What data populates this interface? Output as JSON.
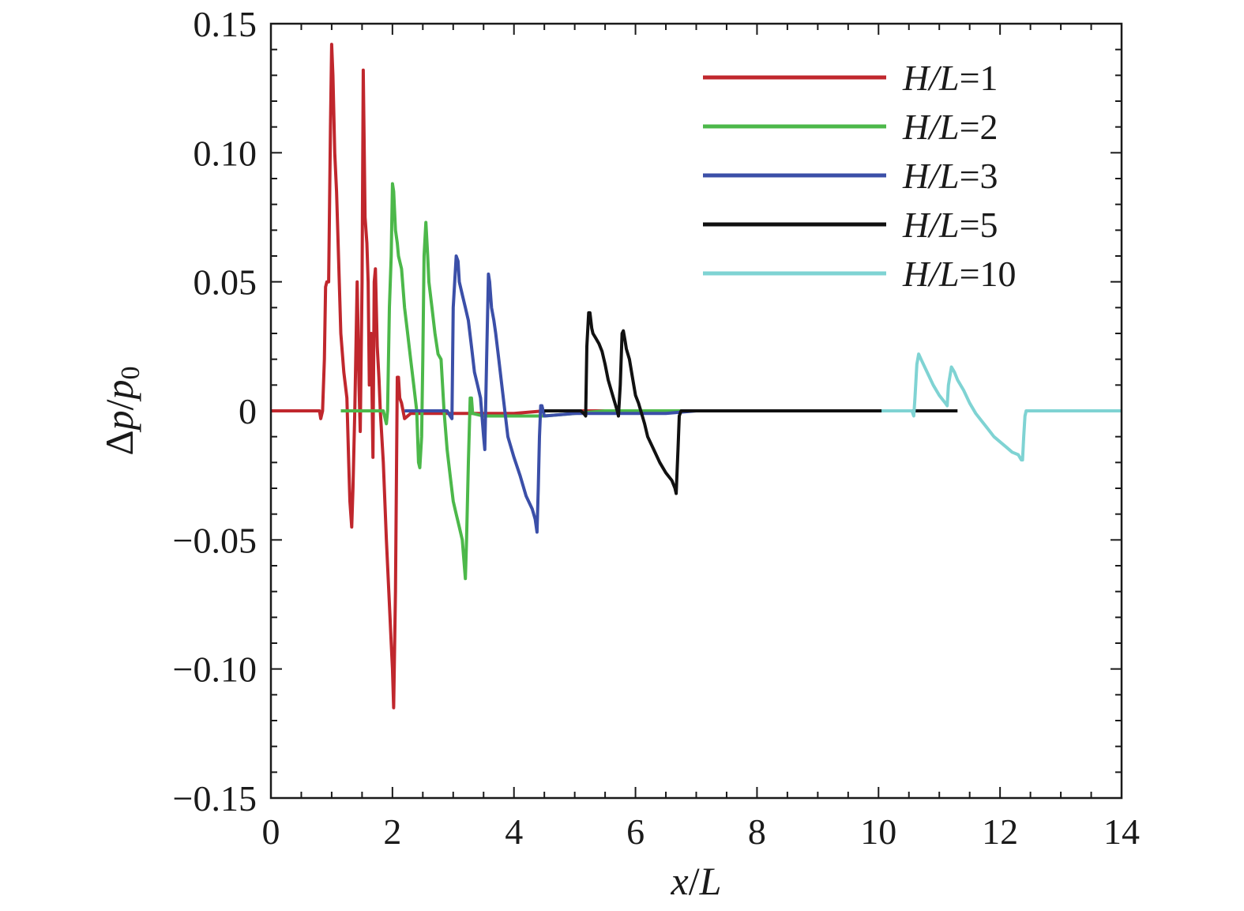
{
  "chart_data": {
    "type": "line",
    "title": "",
    "xlabel": {
      "var": "x",
      "sep": "/",
      "ref": "L"
    },
    "ylabel": {
      "delta": "Δ",
      "var": "p",
      "sep": "/",
      "ref": "p",
      "ref_sub": "0"
    },
    "xlim": [
      0,
      14
    ],
    "ylim": [
      -0.15,
      0.15
    ],
    "xticks": [
      0,
      2,
      4,
      6,
      8,
      10,
      12,
      14
    ],
    "xtick_labels": [
      "0",
      "2",
      "4",
      "6",
      "8",
      "10",
      "12",
      "14"
    ],
    "yticks": [
      0.15,
      0.1,
      0.05,
      0,
      -0.05,
      -0.1,
      -0.15
    ],
    "ytick_labels": [
      "0.15",
      "0.10",
      "0.05",
      "0",
      "−0.05",
      "−0.10",
      "−0.15"
    ],
    "grid": false,
    "legend_position": "top-right",
    "series": [
      {
        "name": "H/L=1",
        "legend": {
          "var": "H/L",
          "eq": "=1"
        },
        "color": "#c0272d",
        "points": [
          [
            0,
            0
          ],
          [
            0.8,
            0
          ],
          [
            0.82,
            -0.003
          ],
          [
            0.85,
            0
          ],
          [
            0.88,
            0.02
          ],
          [
            0.9,
            0.048
          ],
          [
            0.92,
            0.05
          ],
          [
            0.95,
            0.05
          ],
          [
            0.98,
            0.11
          ],
          [
            1.0,
            0.142
          ],
          [
            1.02,
            0.13
          ],
          [
            1.05,
            0.1
          ],
          [
            1.08,
            0.085
          ],
          [
            1.1,
            0.07
          ],
          [
            1.15,
            0.03
          ],
          [
            1.2,
            0.015
          ],
          [
            1.25,
            0.005
          ],
          [
            1.28,
            -0.02
          ],
          [
            1.3,
            -0.035
          ],
          [
            1.33,
            -0.045
          ],
          [
            1.35,
            -0.03
          ],
          [
            1.38,
            0.0
          ],
          [
            1.4,
            0.025
          ],
          [
            1.42,
            0.05
          ],
          [
            1.45,
            0.01
          ],
          [
            1.47,
            -0.008
          ],
          [
            1.5,
            0.05
          ],
          [
            1.52,
            0.132
          ],
          [
            1.55,
            0.075
          ],
          [
            1.58,
            0.065
          ],
          [
            1.6,
            0.05
          ],
          [
            1.62,
            0.01
          ],
          [
            1.65,
            0.03
          ],
          [
            1.68,
            -0.018
          ],
          [
            1.7,
            0.05
          ],
          [
            1.72,
            0.055
          ],
          [
            1.75,
            0.025
          ],
          [
            1.78,
            0.012
          ],
          [
            1.8,
            0.0
          ],
          [
            1.85,
            -0.02
          ],
          [
            1.9,
            -0.05
          ],
          [
            1.93,
            -0.065
          ],
          [
            1.96,
            -0.08
          ],
          [
            1.98,
            -0.09
          ],
          [
            2.0,
            -0.1
          ],
          [
            2.02,
            -0.115
          ],
          [
            2.05,
            -0.07
          ],
          [
            2.08,
            0.013
          ],
          [
            2.1,
            0.013
          ],
          [
            2.12,
            0.005
          ],
          [
            2.15,
            0.003
          ],
          [
            2.2,
            -0.003
          ],
          [
            2.3,
            -0.001
          ],
          [
            2.5,
            -0.001
          ],
          [
            3.0,
            -0.001
          ],
          [
            4.0,
            -0.001
          ],
          [
            4.5,
            0.0
          ],
          [
            5.0,
            0.0
          ],
          [
            5.5,
            0.0
          ],
          [
            6.0,
            0.0
          ],
          [
            6.5,
            0.0
          ],
          [
            6.8,
            0.0
          ]
        ]
      },
      {
        "name": "H/L=2",
        "legend": {
          "var": "H/L",
          "eq": "=2"
        },
        "color": "#4cb84a",
        "points": [
          [
            1.15,
            0
          ],
          [
            1.8,
            0
          ],
          [
            1.85,
            0
          ],
          [
            1.88,
            -0.003
          ],
          [
            1.9,
            -0.005
          ],
          [
            1.92,
            0
          ],
          [
            1.95,
            0.04
          ],
          [
            1.98,
            0.06
          ],
          [
            2.0,
            0.088
          ],
          [
            2.02,
            0.085
          ],
          [
            2.05,
            0.07
          ],
          [
            2.08,
            0.065
          ],
          [
            2.1,
            0.06
          ],
          [
            2.15,
            0.055
          ],
          [
            2.2,
            0.04
          ],
          [
            2.25,
            0.03
          ],
          [
            2.3,
            0.02
          ],
          [
            2.35,
            0.01
          ],
          [
            2.4,
            0.0
          ],
          [
            2.43,
            -0.02
          ],
          [
            2.45,
            -0.022
          ],
          [
            2.48,
            -0.01
          ],
          [
            2.5,
            0.02
          ],
          [
            2.52,
            0.06
          ],
          [
            2.55,
            0.073
          ],
          [
            2.58,
            0.06
          ],
          [
            2.6,
            0.05
          ],
          [
            2.65,
            0.04
          ],
          [
            2.7,
            0.03
          ],
          [
            2.75,
            0.022
          ],
          [
            2.8,
            0.02
          ],
          [
            2.85,
            0.0
          ],
          [
            2.9,
            -0.015
          ],
          [
            2.95,
            -0.025
          ],
          [
            3.0,
            -0.035
          ],
          [
            3.05,
            -0.04
          ],
          [
            3.1,
            -0.045
          ],
          [
            3.15,
            -0.05
          ],
          [
            3.2,
            -0.065
          ],
          [
            3.22,
            -0.05
          ],
          [
            3.25,
            -0.02
          ],
          [
            3.28,
            0.005
          ],
          [
            3.3,
            0.005
          ],
          [
            3.32,
            -0.001
          ],
          [
            3.5,
            -0.002
          ],
          [
            4.0,
            -0.002
          ],
          [
            4.5,
            -0.002
          ],
          [
            5.0,
            -0.001
          ],
          [
            5.5,
            0
          ],
          [
            6.0,
            0
          ],
          [
            6.5,
            0
          ],
          [
            6.8,
            0
          ]
        ]
      },
      {
        "name": "H/L=3",
        "legend": {
          "var": "H/L",
          "eq": "=3"
        },
        "color": "#3b4fa8",
        "points": [
          [
            2.2,
            0
          ],
          [
            2.9,
            0
          ],
          [
            2.95,
            -0.002
          ],
          [
            2.98,
            -0.003
          ],
          [
            3.0,
            0.04
          ],
          [
            3.05,
            0.06
          ],
          [
            3.08,
            0.058
          ],
          [
            3.1,
            0.05
          ],
          [
            3.15,
            0.045
          ],
          [
            3.2,
            0.04
          ],
          [
            3.25,
            0.035
          ],
          [
            3.3,
            0.025
          ],
          [
            3.35,
            0.015
          ],
          [
            3.4,
            0.01
          ],
          [
            3.45,
            0.005
          ],
          [
            3.5,
            -0.01
          ],
          [
            3.52,
            -0.015
          ],
          [
            3.55,
            0.02
          ],
          [
            3.58,
            0.053
          ],
          [
            3.6,
            0.05
          ],
          [
            3.63,
            0.04
          ],
          [
            3.67,
            0.035
          ],
          [
            3.7,
            0.03
          ],
          [
            3.75,
            0.02
          ],
          [
            3.8,
            0.01
          ],
          [
            3.9,
            -0.01
          ],
          [
            4.0,
            -0.018
          ],
          [
            4.1,
            -0.025
          ],
          [
            4.2,
            -0.033
          ],
          [
            4.3,
            -0.038
          ],
          [
            4.35,
            -0.042
          ],
          [
            4.38,
            -0.047
          ],
          [
            4.4,
            -0.03
          ],
          [
            4.42,
            -0.01
          ],
          [
            4.44,
            0.002
          ],
          [
            4.46,
            0.002
          ],
          [
            4.5,
            -0.002
          ],
          [
            5.0,
            -0.001
          ],
          [
            5.5,
            -0.001
          ],
          [
            6.0,
            -0.001
          ],
          [
            6.5,
            -0.001
          ],
          [
            7.0,
            0
          ],
          [
            7.5,
            0
          ],
          [
            8.0,
            0
          ]
        ]
      },
      {
        "name": "H/L=5",
        "legend": {
          "var": "H/L",
          "eq": "=5"
        },
        "color": "#111111",
        "points": [
          [
            4.5,
            0
          ],
          [
            5.0,
            0
          ],
          [
            5.1,
            0
          ],
          [
            5.15,
            -0.001
          ],
          [
            5.18,
            -0.002
          ],
          [
            5.2,
            0.025
          ],
          [
            5.23,
            0.038
          ],
          [
            5.25,
            0.038
          ],
          [
            5.28,
            0.032
          ],
          [
            5.3,
            0.03
          ],
          [
            5.35,
            0.028
          ],
          [
            5.4,
            0.026
          ],
          [
            5.45,
            0.023
          ],
          [
            5.5,
            0.018
          ],
          [
            5.55,
            0.012
          ],
          [
            5.6,
            0.008
          ],
          [
            5.65,
            0.004
          ],
          [
            5.7,
            0.0
          ],
          [
            5.72,
            -0.002
          ],
          [
            5.75,
            0.01
          ],
          [
            5.78,
            0.03
          ],
          [
            5.8,
            0.031
          ],
          [
            5.83,
            0.027
          ],
          [
            5.85,
            0.024
          ],
          [
            5.9,
            0.02
          ],
          [
            5.95,
            0.013
          ],
          [
            6.0,
            0.006
          ],
          [
            6.05,
            0.003
          ],
          [
            6.1,
            -0.001
          ],
          [
            6.15,
            -0.005
          ],
          [
            6.2,
            -0.01
          ],
          [
            6.3,
            -0.015
          ],
          [
            6.4,
            -0.02
          ],
          [
            6.5,
            -0.024
          ],
          [
            6.6,
            -0.027
          ],
          [
            6.65,
            -0.03
          ],
          [
            6.67,
            -0.032
          ],
          [
            6.7,
            -0.015
          ],
          [
            6.72,
            -0.002
          ],
          [
            6.75,
            0.0
          ],
          [
            7.0,
            0
          ],
          [
            8.0,
            0
          ],
          [
            9.0,
            0
          ],
          [
            10.0,
            0
          ],
          [
            10.5,
            0
          ],
          [
            11.0,
            0
          ],
          [
            11.3,
            0
          ]
        ]
      },
      {
        "name": "H/L=10",
        "legend": {
          "var": "H/L",
          "eq": "=10"
        },
        "color": "#7fd3d3",
        "points": [
          [
            10.05,
            0
          ],
          [
            10.5,
            0
          ],
          [
            10.55,
            0
          ],
          [
            10.58,
            -0.002
          ],
          [
            10.6,
            0.005
          ],
          [
            10.63,
            0.018
          ],
          [
            10.66,
            0.022
          ],
          [
            10.7,
            0.02
          ],
          [
            10.8,
            0.015
          ],
          [
            10.9,
            0.01
          ],
          [
            11.0,
            0.006
          ],
          [
            11.1,
            0.003
          ],
          [
            11.13,
            0.002
          ],
          [
            11.15,
            0.01
          ],
          [
            11.2,
            0.017
          ],
          [
            11.25,
            0.015
          ],
          [
            11.3,
            0.012
          ],
          [
            11.4,
            0.008
          ],
          [
            11.5,
            0.003
          ],
          [
            11.6,
            -0.001
          ],
          [
            11.7,
            -0.004
          ],
          [
            11.8,
            -0.007
          ],
          [
            11.9,
            -0.01
          ],
          [
            12.0,
            -0.012
          ],
          [
            12.1,
            -0.014
          ],
          [
            12.2,
            -0.016
          ],
          [
            12.3,
            -0.017
          ],
          [
            12.35,
            -0.019
          ],
          [
            12.37,
            -0.019
          ],
          [
            12.39,
            -0.01
          ],
          [
            12.41,
            -0.002
          ],
          [
            12.43,
            0.0
          ],
          [
            12.5,
            0
          ],
          [
            13.0,
            0
          ],
          [
            13.5,
            0
          ],
          [
            14.0,
            0
          ]
        ]
      }
    ]
  }
}
